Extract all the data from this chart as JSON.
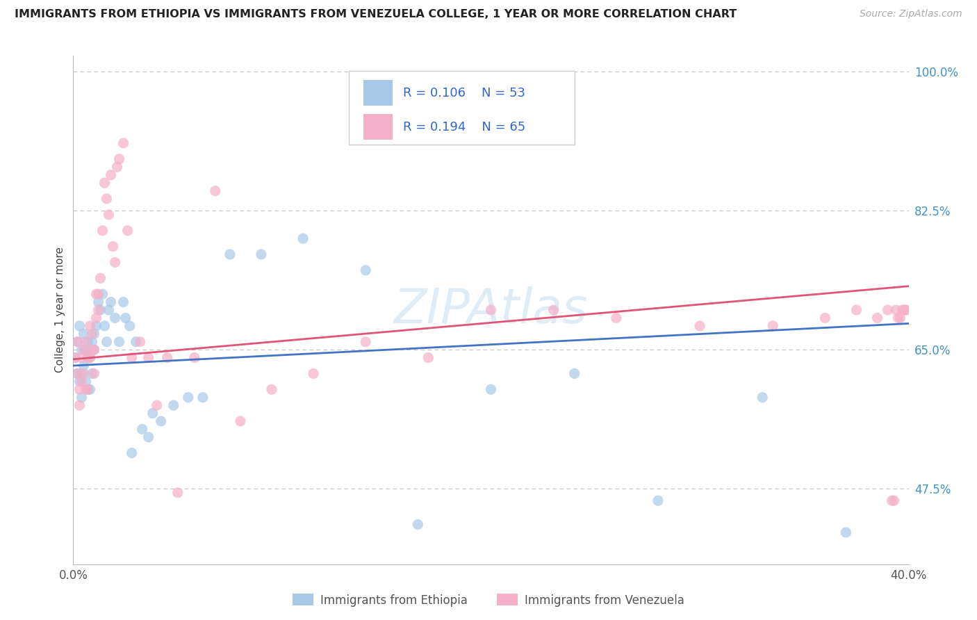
{
  "title": "IMMIGRANTS FROM ETHIOPIA VS IMMIGRANTS FROM VENEZUELA COLLEGE, 1 YEAR OR MORE CORRELATION CHART",
  "source": "Source: ZipAtlas.com",
  "ylabel": "College, 1 year or more",
  "xlim": [
    0.0,
    0.4
  ],
  "ylim": [
    0.38,
    1.02
  ],
  "ytick_values": [
    1.0,
    0.825,
    0.65,
    0.475
  ],
  "ytick_labels": [
    "100.0%",
    "82.5%",
    "65.0%",
    "47.5%"
  ],
  "color_ethiopia": "#a8c8e8",
  "color_venezuela": "#f4b0c8",
  "color_line_ethiopia": "#4472c4",
  "color_line_venezuela": "#e05575",
  "r_ethiopia": 0.106,
  "n_ethiopia": 53,
  "r_venezuela": 0.194,
  "n_venezuela": 65,
  "ethiopia_x": [
    0.001,
    0.002,
    0.002,
    0.003,
    0.003,
    0.004,
    0.004,
    0.004,
    0.005,
    0.005,
    0.006,
    0.006,
    0.007,
    0.007,
    0.007,
    0.008,
    0.008,
    0.009,
    0.009,
    0.01,
    0.01,
    0.011,
    0.012,
    0.013,
    0.014,
    0.015,
    0.016,
    0.017,
    0.018,
    0.02,
    0.022,
    0.024,
    0.025,
    0.027,
    0.028,
    0.03,
    0.033,
    0.036,
    0.038,
    0.042,
    0.048,
    0.055,
    0.062,
    0.075,
    0.09,
    0.11,
    0.14,
    0.165,
    0.2,
    0.24,
    0.28,
    0.33,
    0.37
  ],
  "ethiopia_y": [
    0.64,
    0.62,
    0.66,
    0.61,
    0.68,
    0.65,
    0.62,
    0.59,
    0.67,
    0.63,
    0.65,
    0.61,
    0.66,
    0.64,
    0.6,
    0.64,
    0.6,
    0.66,
    0.62,
    0.65,
    0.67,
    0.68,
    0.71,
    0.7,
    0.72,
    0.68,
    0.66,
    0.7,
    0.71,
    0.69,
    0.66,
    0.71,
    0.69,
    0.68,
    0.52,
    0.66,
    0.55,
    0.54,
    0.57,
    0.56,
    0.58,
    0.59,
    0.59,
    0.77,
    0.77,
    0.79,
    0.75,
    0.43,
    0.6,
    0.62,
    0.46,
    0.59,
    0.42
  ],
  "venezuela_x": [
    0.001,
    0.002,
    0.002,
    0.003,
    0.003,
    0.004,
    0.004,
    0.005,
    0.005,
    0.006,
    0.006,
    0.007,
    0.007,
    0.008,
    0.008,
    0.009,
    0.009,
    0.01,
    0.01,
    0.011,
    0.011,
    0.012,
    0.012,
    0.013,
    0.014,
    0.015,
    0.016,
    0.017,
    0.018,
    0.019,
    0.02,
    0.021,
    0.022,
    0.024,
    0.026,
    0.028,
    0.032,
    0.036,
    0.04,
    0.045,
    0.05,
    0.058,
    0.068,
    0.08,
    0.095,
    0.115,
    0.14,
    0.17,
    0.2,
    0.23,
    0.26,
    0.3,
    0.335,
    0.36,
    0.375,
    0.385,
    0.39,
    0.394,
    0.396,
    0.398,
    0.399,
    0.397,
    0.395,
    0.393,
    0.392
  ],
  "venezuela_y": [
    0.64,
    0.62,
    0.66,
    0.6,
    0.58,
    0.64,
    0.61,
    0.65,
    0.62,
    0.6,
    0.66,
    0.64,
    0.6,
    0.68,
    0.64,
    0.65,
    0.67,
    0.62,
    0.65,
    0.72,
    0.69,
    0.7,
    0.72,
    0.74,
    0.8,
    0.86,
    0.84,
    0.82,
    0.87,
    0.78,
    0.76,
    0.88,
    0.89,
    0.91,
    0.8,
    0.64,
    0.66,
    0.64,
    0.58,
    0.64,
    0.47,
    0.64,
    0.85,
    0.56,
    0.6,
    0.62,
    0.66,
    0.64,
    0.7,
    0.7,
    0.69,
    0.68,
    0.68,
    0.69,
    0.7,
    0.69,
    0.7,
    0.7,
    0.69,
    0.7,
    0.7,
    0.7,
    0.69,
    0.46,
    0.46
  ]
}
